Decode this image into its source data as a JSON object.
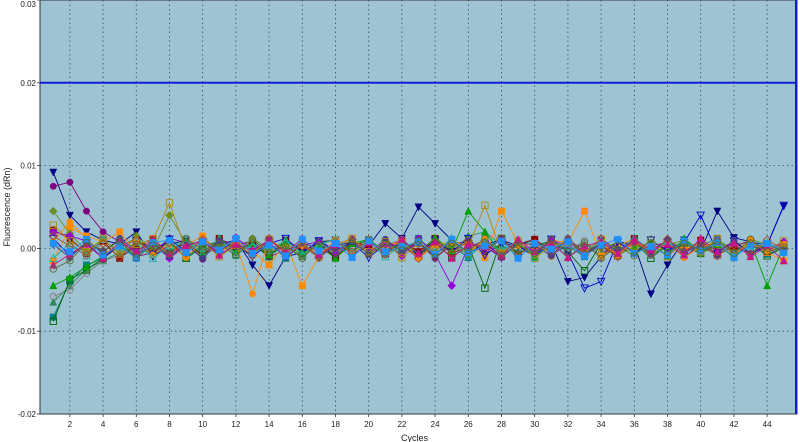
{
  "chart_data": {
    "type": "line",
    "title": "",
    "xlabel": "Cycles",
    "ylabel": "Fluorescence (dRn)",
    "xlim": [
      0.2,
      45.8
    ],
    "ylim": [
      -0.02,
      0.03
    ],
    "x_ticks": [
      2,
      4,
      6,
      8,
      10,
      12,
      14,
      16,
      18,
      20,
      22,
      24,
      26,
      28,
      30,
      32,
      34,
      36,
      38,
      40,
      42,
      44
    ],
    "y_ticks": [
      -0.02,
      -0.01,
      0.0,
      0.01,
      0.02,
      0.03
    ],
    "y_tick_labels": [
      "-0.02",
      "-0.01",
      "0.00",
      "0.01",
      "0.02",
      "0.03"
    ],
    "threshold": 0.02,
    "grid": true,
    "legend": "none",
    "colors": {
      "plot_background": "#9ec3d3",
      "grid": "#3a4a55",
      "threshold": "#0a1fd6"
    },
    "marker_shapes": [
      "square",
      "triangle",
      "diamond",
      "circle",
      "triangle-down",
      "square-open",
      "triangle-open",
      "circle-open",
      "diamond-open",
      "triangle-down-open"
    ],
    "series": [
      {
        "color": "#000080",
        "marker": "triangle-down",
        "values": [
          0.0092,
          0.004,
          0.002,
          0.001,
          0.0005,
          0.002,
          -0.001,
          0.0005,
          0.001,
          -0.0008,
          0.0005,
          0.001,
          -0.002,
          -0.0045,
          -0.001,
          -0.0005,
          0.0008,
          0.001,
          -0.0007,
          0.0003,
          0.003,
          0.0012,
          0.005,
          0.003,
          0.001,
          -0.0005,
          0.0005,
          0.001,
          0.0003,
          -0.001,
          0.0006,
          -0.004,
          -0.0035,
          -0.001,
          0.0008,
          0.0005,
          -0.0055,
          -0.002,
          0.001,
          -0.0003,
          0.0045,
          0.0013,
          0.0008,
          0.0004,
          0.0051
        ]
      },
      {
        "color": "#800080",
        "marker": "circle",
        "values": [
          0.0075,
          0.008,
          0.0045,
          0.002,
          0.0008,
          -0.001,
          -0.0005,
          0.0012,
          0.0007,
          -0.0013,
          0.0011,
          0.0004,
          0.0009,
          -0.001,
          -0.0002,
          0.0006,
          -0.0011,
          0.0003,
          0.0008,
          -0.0006,
          0.001,
          -0.0004,
          0.0007,
          -0.0012,
          0.0005,
          0.0009,
          -0.0003,
          0.0011,
          -0.0007,
          0.0004,
          -0.0009,
          0.0006,
          0.0002,
          -0.0008,
          0.001,
          -0.0005,
          0.0003,
          0.0007,
          -0.0011,
          0.0005,
          -0.0002,
          0.0008,
          -0.0006,
          0.0004,
          -0.0003
        ]
      },
      {
        "color": "#008080",
        "marker": "square",
        "values": [
          -0.0083,
          -0.004,
          -0.002,
          -0.0012,
          0.0003,
          -0.0008,
          0.0006,
          -0.001,
          0.0004,
          0.0009,
          -0.0006,
          0.0011,
          -0.0004,
          0.0007,
          -0.0012,
          0.0005,
          0.0002,
          -0.0009,
          0.001,
          -0.0003,
          0.0006,
          -0.0007,
          0.0012,
          -0.0005,
          0.0003,
          -0.0011,
          0.0008,
          -0.0002,
          0.0005,
          0.0009,
          -0.0006,
          0.0003,
          -0.001,
          0.0007,
          -0.0004,
          0.0011,
          -0.0008,
          0.0002,
          0.0006,
          -0.0005,
          0.0009,
          -0.0003,
          0.0004,
          -0.0007,
          0.0001
        ]
      },
      {
        "color": "#2e8b57",
        "marker": "triangle",
        "values": [
          -0.0065,
          -0.0045,
          -0.0025,
          -0.0015,
          -0.0005,
          0.0002,
          -0.0007,
          0.0009,
          -0.0011,
          0.0004,
          0.0007,
          -0.0004,
          0.0012,
          -0.0008,
          0.0003,
          -0.001,
          0.0006,
          0.0011,
          -0.0005,
          0.0008,
          -0.0002,
          0.0005,
          -0.0009,
          0.001,
          -0.0006,
          0.0015,
          0.002,
          0.0004,
          -0.0007,
          0.0003,
          0.0009,
          -0.0011,
          0.0006,
          -0.0002,
          0.0008,
          -0.0005,
          0.0003,
          -0.0009,
          0.0011,
          -0.0004,
          0.0002,
          -0.0008,
          0.0006,
          0.0001,
          -0.0002
        ]
      },
      {
        "color": "#808080",
        "marker": "circle-open",
        "values": [
          -0.0058,
          -0.005,
          -0.003,
          -0.0015,
          -0.0008,
          -0.0003,
          0.0005,
          -0.0006,
          0.001,
          -0.0009,
          0.0002,
          0.0008,
          -0.0005,
          0.0011,
          -0.0002,
          0.0007,
          -0.0012,
          0.0004,
          0.0009,
          -0.0006,
          0.0003,
          0.0011,
          -0.0008,
          0.0005,
          -0.001,
          0.0002,
          0.0007,
          -0.0004,
          0.001,
          -0.0007,
          0.0005,
          -0.0002,
          0.0009,
          -0.0011,
          0.0004,
          0.0006,
          -0.0008,
          0.0003,
          -0.0005,
          0.001,
          -0.0003,
          0.0005,
          -0.0009,
          0.0002,
          0.0004
        ]
      },
      {
        "color": "#006400",
        "marker": "square-open",
        "values": [
          -0.0088,
          -0.0038,
          -0.0026,
          -0.0012,
          0.0004,
          0.0011,
          -0.0004,
          0.0007,
          -0.0012,
          0.0002,
          0.0009,
          -0.0007,
          0.0005,
          -0.001,
          0.0008,
          -0.0003,
          0.0006,
          -0.0009,
          0.0003,
          0.001,
          -0.0005,
          0.0002,
          -0.0008,
          0.0007,
          -0.0011,
          0.0004,
          -0.0048,
          0.0012,
          -0.0006,
          0.0003,
          0.0009,
          -0.0004,
          -0.0027,
          0.0006,
          -0.0002,
          0.0008,
          -0.0012,
          0.0005,
          0.0002,
          -0.0006,
          0.0011,
          -0.0003,
          0.0007,
          -0.0009,
          0.0001
        ]
      },
      {
        "color": "#ff8c00",
        "marker": "square",
        "values": [
          -0.0015,
          0.0025,
          0.0015,
          0.0008,
          0.002,
          -0.0005,
          0.0012,
          -0.0009,
          0.0004,
          0.0015,
          -0.0006,
          0.0009,
          -0.0003,
          -0.002,
          0.0007,
          -0.0045,
          -0.001,
          0.0005,
          0.0011,
          -0.0007,
          0.0003,
          0.0009,
          -0.0005,
          0.0012,
          -0.0002,
          0.0008,
          -0.0011,
          0.0045,
          0.0006,
          -0.0004,
          0.001,
          0.0007,
          0.0045,
          -0.0009,
          0.0003,
          0.0012,
          -0.0006,
          0.0005,
          -0.0002,
          0.0009,
          0.0004,
          -0.0008,
          0.0006,
          -0.0005,
          -0.0015
        ]
      },
      {
        "color": "#8b0000",
        "marker": "square",
        "values": [
          0.0022,
          0.0012,
          -0.0006,
          0.0009,
          -0.0012,
          0.0004,
          0.0011,
          -0.0005,
          0.0007,
          -0.0009,
          0.0012,
          -0.0003,
          0.0006,
          -0.0008,
          0.001,
          -0.0002,
          0.0005,
          -0.0011,
          0.0008,
          0.0003,
          -0.0007,
          0.0009,
          -0.0004,
          0.0012,
          -0.0006,
          0.0002,
          0.0007,
          -0.001,
          0.0005,
          0.0011,
          -0.0003,
          0.0008,
          -0.0007,
          0.0004,
          -0.0009,
          0.0012,
          -0.0002,
          0.0006,
          -0.0005,
          0.001,
          -0.0008,
          0.0003,
          0.0009,
          -0.0004,
          0.0002
        ]
      },
      {
        "color": "#6b8e23",
        "marker": "diamond",
        "values": [
          0.0045,
          0.0018,
          -0.0004,
          0.0011,
          -0.0007,
          0.0015,
          -0.0002,
          0.004,
          0.0006,
          -0.001,
          0.0008,
          -0.0005,
          0.0012,
          -0.0001,
          0.0007,
          -0.0009,
          0.0004,
          0.0011,
          -0.0006,
          0.0009,
          -0.0003,
          0.0005,
          -0.0012,
          0.0008,
          0.0002,
          -0.0007,
          0.001,
          -0.0004,
          0.0006,
          -0.0011,
          0.0003,
          0.0009,
          -0.0005,
          0.0012,
          -0.0002,
          0.0007,
          -0.0008,
          0.0004,
          0.001,
          -0.0006,
          0.0003,
          -0.0009,
          0.0011,
          0.0005,
          -0.0006
        ]
      },
      {
        "color": "#0000cd",
        "marker": "triangle-down-open",
        "values": [
          0.0012,
          -0.0009,
          0.0007,
          -0.0012,
          0.0005,
          0.0009,
          -0.0006,
          0.0011,
          -0.0003,
          0.0008,
          -0.0008,
          0.0004,
          -0.001,
          0.0006,
          0.0012,
          -0.0005,
          0.0009,
          -0.0002,
          0.0007,
          -0.0011,
          0.0005,
          0.0003,
          -0.0007,
          0.001,
          -0.0004,
          0.0012,
          -0.0008,
          0.0006,
          0.0003,
          -0.0009,
          0.0011,
          -0.0005,
          -0.0048,
          -0.004,
          0.0008,
          -0.0006,
          0.001,
          -0.0003,
          0.0007,
          0.004,
          -0.0005,
          0.0009,
          -0.0007,
          0.0004,
          0.0052
        ]
      },
      {
        "color": "#00a000",
        "marker": "triangle",
        "values": [
          -0.0045,
          -0.0035,
          -0.0022,
          -0.0009,
          0.0004,
          -0.0011,
          0.0007,
          -0.0004,
          0.001,
          -0.0006,
          0.0012,
          -0.0002,
          0.0005,
          -0.0008,
          0.0009,
          -0.0005,
          0.0003,
          -0.0012,
          0.0006,
          0.0011,
          -0.0004,
          0.0008,
          -0.0007,
          0.0013,
          -0.0003,
          0.0045,
          0.002,
          -0.0006,
          0.0009,
          -0.001,
          0.0004,
          0.0007,
          -0.0005,
          0.0011,
          -0.0008,
          0.0002,
          0.0006,
          -0.0009,
          0.0012,
          -0.0004,
          0.0005,
          -0.0011,
          0.0008,
          -0.0045,
          0.0003
        ]
      },
      {
        "color": "#9400d3",
        "marker": "diamond",
        "values": [
          0.002,
          0.0015,
          0.0009,
          -0.0004,
          0.0011,
          -0.0007,
          0.0006,
          -0.0012,
          0.0004,
          0.0009,
          -0.0005,
          0.0013,
          -0.0002,
          0.0007,
          -0.001,
          0.0004,
          0.0008,
          -0.0006,
          0.0011,
          -0.0003,
          0.0005,
          -0.0009,
          0.0012,
          -0.0007,
          -0.0045,
          0.0002,
          0.0009,
          -0.0011,
          0.0006,
          -0.0004,
          0.001,
          0.0003,
          -0.0008,
          0.0012,
          -0.0005,
          0.0007,
          -0.0002,
          0.0009,
          -0.0006,
          0.0004,
          0.0011,
          -0.0007,
          0.0005,
          -0.0003,
          0.0008
        ]
      },
      {
        "color": "#ff8c00",
        "marker": "circle",
        "values": [
          0.0008,
          0.0032,
          0.0012,
          -0.0007,
          0.0004,
          0.001,
          -0.0008,
          0.0005,
          -0.0011,
          0.0009,
          -0.0003,
          0.0006,
          -0.0055,
          0.0012,
          -0.0005,
          0.0003,
          -0.0009,
          0.0011,
          -0.0006,
          0.0007,
          -0.0002,
          0.0009,
          -0.0012,
          0.0004,
          0.0008,
          -0.0005,
          0.0011,
          -0.0007,
          0.0003,
          0.0006,
          -0.001,
          0.0012,
          -0.0004,
          0.0005,
          -0.0008,
          0.0009,
          -0.0003,
          0.0007,
          -0.0011,
          0.0002,
          0.0006,
          -0.0009,
          0.001,
          -0.0004,
          0.0005
        ]
      },
      {
        "color": "#20b2aa",
        "marker": "triangle-open",
        "values": [
          -0.0012,
          0.0006,
          -0.0009,
          0.0011,
          -0.0004,
          0.0007,
          -0.0012,
          0.0003,
          0.0009,
          -0.0006,
          0.0012,
          -0.0008,
          0.0005,
          -0.0002,
          0.001,
          -0.0007,
          0.0004,
          0.0011,
          -0.0005,
          0.0008,
          -0.001,
          0.0003,
          0.0007,
          -0.0004,
          0.0012,
          -0.0009,
          0.0006,
          -0.0002,
          0.0009,
          -0.0011,
          0.0005,
          0.0002,
          -0.0007,
          0.001,
          -0.0005,
          0.0013,
          -0.0003,
          0.0008,
          -0.0006,
          0.0004,
          0.0011,
          -0.0008,
          0.0003,
          0.0007,
          -0.0002
        ]
      },
      {
        "color": "#483d8b",
        "marker": "circle",
        "values": [
          0.0005,
          -0.0011,
          0.0008,
          -0.0005,
          0.0012,
          -0.0003,
          0.0007,
          -0.0009,
          0.0004,
          -0.0012,
          0.0009,
          0.0002,
          -0.0007,
          0.0011,
          -0.0004,
          0.0006,
          -0.001,
          0.0003,
          0.0008,
          -0.0006,
          0.0011,
          -0.0003,
          0.0005,
          -0.0008,
          0.001,
          -0.0005,
          0.0002,
          -0.0011,
          0.0007,
          0.0004,
          -0.0009,
          0.0012,
          -0.0005,
          0.0006,
          -0.0002,
          0.0009,
          -0.0007,
          0.0011,
          -0.0004,
          0.0003,
          -0.0008,
          0.001,
          -0.0006,
          0.0005,
          -0.0003
        ]
      },
      {
        "color": "#b8860b",
        "marker": "square-open",
        "values": [
          0.0028,
          0.0009,
          -0.0004,
          0.0012,
          -0.0007,
          0.0005,
          0.001,
          0.0055,
          -0.0003,
          0.0008,
          -0.001,
          0.0004,
          -0.0006,
          0.0011,
          -0.0002,
          0.0007,
          -0.0009,
          0.0005,
          0.0012,
          -0.0004,
          0.0008,
          -0.0011,
          0.0006,
          -0.0003,
          0.001,
          0.0002,
          0.0052,
          -0.0006,
          0.0009,
          -0.0012,
          0.0004,
          0.0007,
          -0.0005,
          0.0011,
          -0.0008,
          0.0003,
          0.0006,
          -0.001,
          0.0008,
          -0.0004,
          0.0012,
          -0.0006,
          0.0005,
          -0.0002,
          0.0009
        ]
      },
      {
        "color": "#a0522d",
        "marker": "diamond-open",
        "values": [
          0.0015,
          0.0003,
          -0.0008,
          0.0006,
          -0.0011,
          0.0009,
          -0.0004,
          0.0007,
          -0.0006,
          0.0011,
          -0.0002,
          0.0005,
          -0.0009,
          0.0012,
          -0.0006,
          0.0003,
          -0.0011,
          0.0008,
          -0.0004,
          0.001,
          -0.0007,
          0.0004,
          -0.0012,
          0.0007,
          -0.0005,
          0.0009,
          -0.0002,
          0.0012,
          -0.0008,
          0.0006,
          -0.0003,
          0.001,
          -0.0007,
          0.0002,
          -0.001,
          0.0008,
          -0.0005,
          0.0011,
          -0.0003,
          0.0006,
          -0.0009,
          0.0004,
          -0.0007,
          0.001,
          -0.0001
        ]
      },
      {
        "color": "#c71585",
        "marker": "triangle",
        "values": [
          -0.002,
          -0.0007,
          0.0005,
          -0.0012,
          0.0008,
          -0.0004,
          0.0011,
          -0.0006,
          0.0003,
          0.0009,
          -0.0008,
          0.0005,
          -0.0002,
          0.001,
          -0.0005,
          0.0012,
          -0.0007,
          0.0004,
          -0.001,
          0.0007,
          -0.0003,
          0.0011,
          -0.0006,
          0.0008,
          -0.0012,
          0.0005,
          0.0002,
          -0.0009,
          0.0011,
          -0.0004,
          0.0007,
          -0.0011,
          0.0003,
          0.0008,
          -0.0006,
          0.001,
          -0.0002,
          0.0005,
          -0.0008,
          0.0012,
          -0.0004,
          0.0006,
          -0.001,
          0.0003,
          -0.0015
        ]
      },
      {
        "color": "#1e90ff",
        "marker": "square",
        "values": [
          0.0006,
          -0.0004,
          0.0011,
          -0.0008,
          0.0003,
          -0.0012,
          0.0007,
          0.001,
          -0.0005,
          0.0008,
          -0.0002,
          0.0012,
          -0.0006,
          0.0004,
          -0.0009,
          0.0011,
          -0.0003,
          0.0006,
          -0.0011,
          0.0009,
          -0.0004,
          0.0002,
          0.0008,
          -0.0007,
          0.0011,
          -0.0005,
          0.0003,
          0.0009,
          -0.0012,
          0.0006,
          -0.0001,
          0.0008,
          -0.0009,
          0.0004,
          0.0011,
          -0.0006,
          0.0002,
          -0.0008,
          0.0009,
          -0.0003,
          0.0007,
          -0.0011,
          0.0004,
          0.0006,
          -0.0005
        ]
      },
      {
        "color": "#556b2f",
        "marker": "circle-open",
        "values": [
          -0.0025,
          -0.0015,
          0.0007,
          -0.0003,
          0.0009,
          -0.0011,
          0.0004,
          -0.0007,
          0.0012,
          -0.0002,
          0.0006,
          -0.0009,
          0.0011,
          -0.0005,
          0.0003,
          -0.0012,
          0.0008,
          -0.0004,
          0.001,
          -0.0007,
          0.0005,
          -0.0002,
          0.0009,
          -0.0011,
          0.0006,
          -0.0003,
          0.0012,
          -0.0008,
          0.0004,
          -0.0006,
          0.001,
          -0.0004,
          0.0007,
          -0.0012,
          0.0003,
          -0.0009,
          0.0011,
          -0.0005,
          0.0006,
          -0.0002,
          0.0008,
          -0.0006,
          0.0011,
          -0.0004,
          0.0002
        ]
      }
    ]
  }
}
